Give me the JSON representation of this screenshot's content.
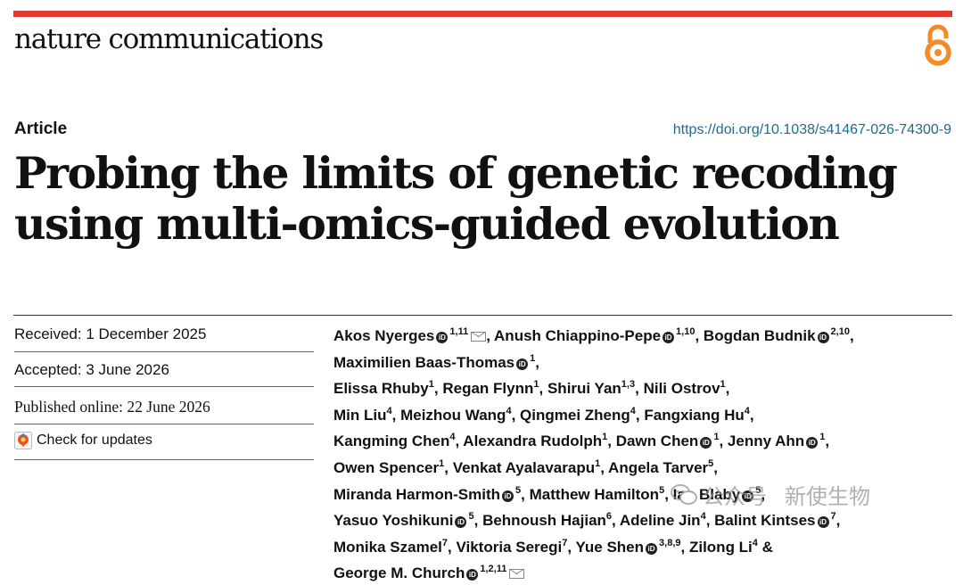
{
  "header": {
    "journal": "nature communications",
    "accent_color": "#e03a2f",
    "open_access_icon": "open-access-icon"
  },
  "article": {
    "type": "Article",
    "doi": "https://doi.org/10.1038/s41467-026-74300-9",
    "title": "Probing the limits of genetic recoding using multi-omics-guided evolution"
  },
  "dates": {
    "received": "Received: 1 December 2025",
    "accepted": "Accepted: 3 June 2026",
    "published": "Published online: 22 June 2026",
    "check_updates": "Check for updates"
  },
  "authors": [
    {
      "name": "Akos Nyerges",
      "orcid": true,
      "aff": "1,11",
      "email": true
    },
    {
      "name": "Anush Chiappino-Pepe",
      "orcid": true,
      "aff": "1,10"
    },
    {
      "name": "Bogdan Budnik",
      "orcid": true,
      "aff": "2,10"
    },
    {
      "name": "Maximilien Baas-Thomas",
      "orcid": true,
      "aff": "1"
    },
    {
      "name": "Elissa Rhuby",
      "aff": "1"
    },
    {
      "name": "Regan Flynn",
      "aff": "1"
    },
    {
      "name": "Shirui Yan",
      "aff": "1,3"
    },
    {
      "name": "Nili Ostrov",
      "aff": "1"
    },
    {
      "name": "Min Liu",
      "aff": "4"
    },
    {
      "name": "Meizhou Wang",
      "aff": "4"
    },
    {
      "name": "Qingmei Zheng",
      "aff": "4"
    },
    {
      "name": "Fangxiang Hu",
      "aff": "4"
    },
    {
      "name": "Kangming Chen",
      "aff": "4"
    },
    {
      "name": "Alexandra Rudolph",
      "aff": "1"
    },
    {
      "name": "Dawn Chen",
      "orcid": true,
      "aff": "1"
    },
    {
      "name": "Jenny Ahn",
      "orcid": true,
      "aff": "1"
    },
    {
      "name": "Owen Spencer",
      "aff": "1"
    },
    {
      "name": "Venkat Ayalavarapu",
      "aff": "1"
    },
    {
      "name": "Angela Tarver",
      "aff": "5"
    },
    {
      "name": "Miranda Harmon-Smith",
      "orcid": true,
      "aff": "5"
    },
    {
      "name": "Matthew Hamilton",
      "aff": "5"
    },
    {
      "name": "Ian Blaby",
      "orcid": true,
      "aff": "5"
    },
    {
      "name": "Yasuo Yoshikuni",
      "orcid": true,
      "aff": "5"
    },
    {
      "name": "Behnoush Hajian",
      "aff": "6"
    },
    {
      "name": "Adeline Jin",
      "aff": "4"
    },
    {
      "name": "Balint Kintses",
      "orcid": true,
      "aff": "7"
    },
    {
      "name": "Monika Szamel",
      "aff": "7"
    },
    {
      "name": "Viktoria Seregi",
      "aff": "7"
    },
    {
      "name": "Yue Shen",
      "orcid": true,
      "aff": "3,8,9"
    },
    {
      "name": "Zilong Li",
      "aff": "4",
      "suffix": " &"
    },
    {
      "name": "George M. Church",
      "orcid": true,
      "aff": "1,2,11",
      "email": true
    }
  ],
  "watermark": {
    "source": "公众号",
    "account": "新使生物"
  }
}
